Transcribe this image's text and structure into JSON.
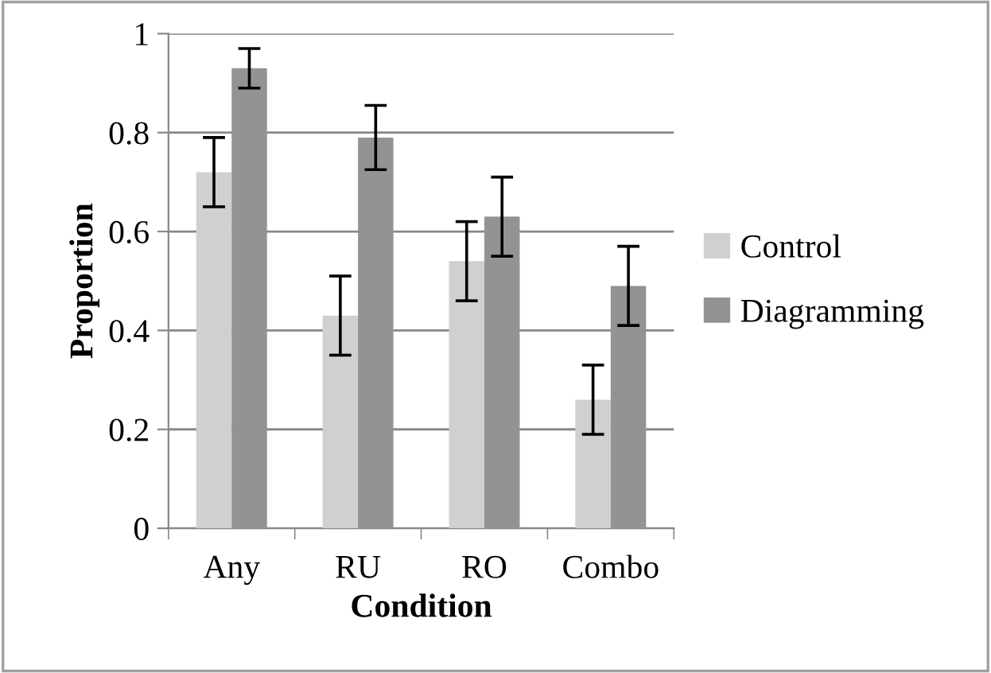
{
  "chart_data": {
    "type": "bar",
    "xlabel": "Condition",
    "ylabel": "Proportion",
    "categories": [
      "Any",
      "RU",
      "RO",
      "Combo"
    ],
    "series": [
      {
        "name": "Control",
        "color": "#d0d0d0",
        "values": [
          0.72,
          0.43,
          0.54,
          0.26
        ],
        "errors": [
          0.07,
          0.08,
          0.08,
          0.07
        ]
      },
      {
        "name": "Diagramming",
        "color": "#939393",
        "values": [
          0.93,
          0.79,
          0.63,
          0.49
        ],
        "errors": [
          0.04,
          0.065,
          0.08,
          0.08
        ]
      }
    ],
    "ylim": [
      0,
      1
    ],
    "yticks": [
      0,
      {
        "value": 0.2,
        "label": "0.2"
      },
      {
        "value": 0.4,
        "label": "0.4"
      },
      {
        "value": 0.6,
        "label": "0.6"
      },
      {
        "value": 0.8,
        "label": "0.8"
      },
      1
    ],
    "grid": "y",
    "legend": "right"
  }
}
